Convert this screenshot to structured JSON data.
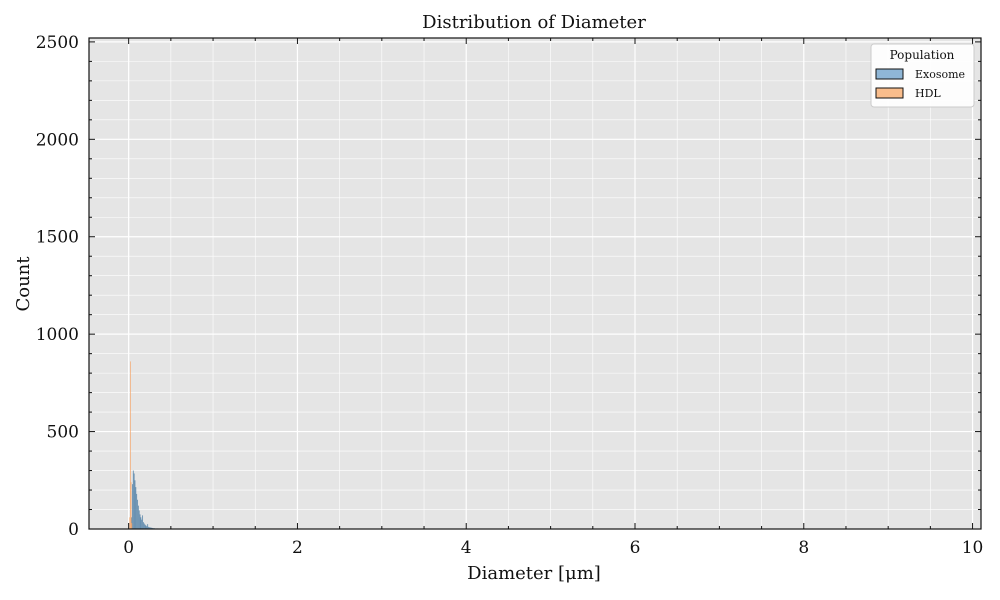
{
  "chart_data": {
    "type": "histogram",
    "title": "Distribution of Diameter",
    "xlabel": "Diameter [μm]",
    "ylabel": "Count",
    "xlim": [
      -0.47,
      10.1
    ],
    "ylim": [
      0,
      2520
    ],
    "x_ticks": [
      0,
      2,
      4,
      6,
      8,
      10
    ],
    "y_ticks": [
      0,
      500,
      1000,
      1500,
      2000,
      2500
    ],
    "grid": true,
    "legend": {
      "title": "Population",
      "placement": "top-right",
      "entries": [
        {
          "label": "Exosome",
          "color": "#4f7fa6"
        },
        {
          "label": "HDL",
          "color": "#f5a66b"
        }
      ]
    },
    "series": [
      {
        "name": "Exosome",
        "color": "#4f7fa6",
        "bin_width": 0.01,
        "bins": [
          [
            0.03,
            60
          ],
          [
            0.04,
            230
          ],
          [
            0.05,
            300
          ],
          [
            0.06,
            285
          ],
          [
            0.07,
            250
          ],
          [
            0.08,
            215
          ],
          [
            0.09,
            180
          ],
          [
            0.1,
            150
          ],
          [
            0.11,
            120
          ],
          [
            0.12,
            95
          ],
          [
            0.13,
            75
          ],
          [
            0.14,
            60
          ],
          [
            0.15,
            48
          ],
          [
            0.16,
            70
          ],
          [
            0.17,
            35
          ],
          [
            0.18,
            28
          ],
          [
            0.19,
            22
          ],
          [
            0.2,
            18
          ],
          [
            0.21,
            14
          ],
          [
            0.22,
            25
          ],
          [
            0.23,
            11
          ],
          [
            0.24,
            9
          ],
          [
            0.25,
            8
          ],
          [
            0.26,
            7
          ],
          [
            0.27,
            6
          ],
          [
            0.28,
            5
          ],
          [
            0.29,
            4
          ],
          [
            0.3,
            4
          ],
          [
            0.32,
            3
          ],
          [
            0.34,
            3
          ],
          [
            0.36,
            2
          ],
          [
            0.38,
            2
          ],
          [
            0.4,
            2
          ],
          [
            0.42,
            1
          ],
          [
            0.45,
            1
          ],
          [
            0.48,
            1
          ],
          [
            0.5,
            1
          ]
        ]
      },
      {
        "name": "HDL",
        "color": "#f5a66b",
        "bin_width": 0.008,
        "bins": [
          [
            0.008,
            60
          ],
          [
            0.016,
            860
          ],
          [
            0.024,
            240
          ],
          [
            0.032,
            30
          ]
        ]
      }
    ]
  }
}
